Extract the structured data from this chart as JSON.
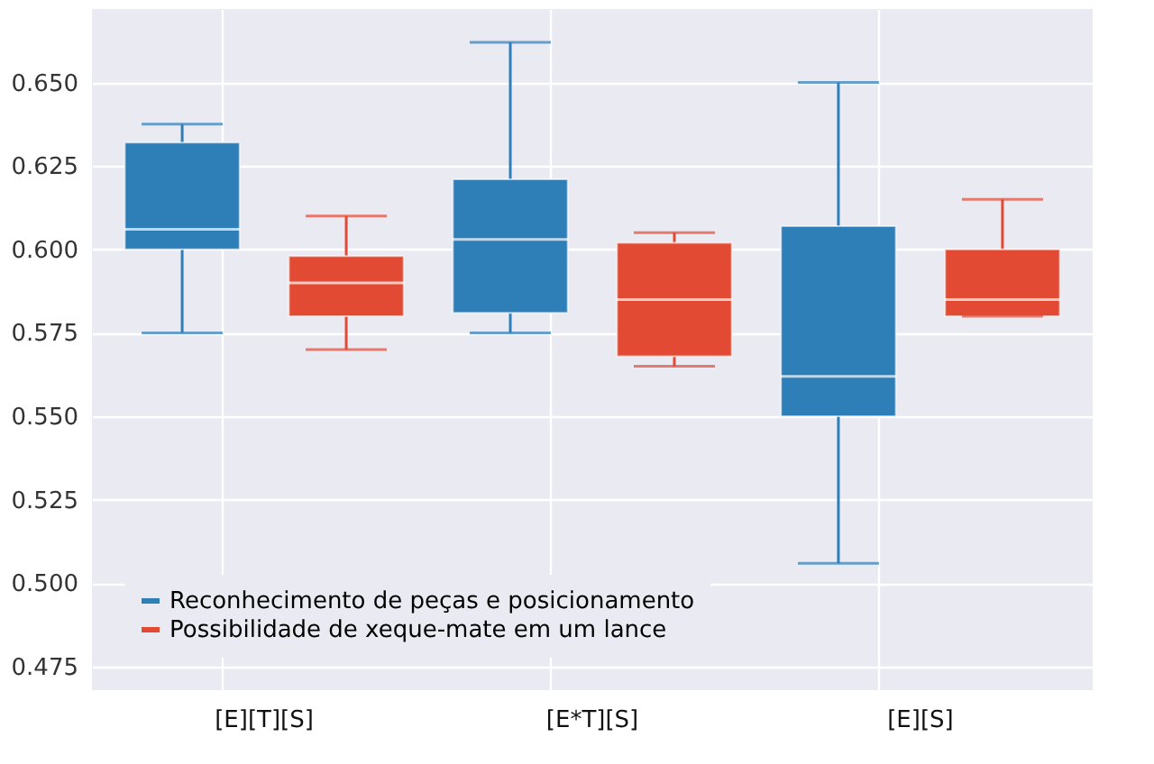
{
  "chart_data": {
    "type": "box",
    "categories": [
      "[E][T][S]",
      "[E*T][S]",
      "[E][S]"
    ],
    "series": [
      {
        "name": "Reconhecimento de peças e posicionamento",
        "color": "#2e7eb8",
        "boxes": [
          {
            "low": 0.575,
            "q1": 0.6,
            "median": 0.606,
            "q3": 0.632,
            "high": 0.6375
          },
          {
            "low": 0.575,
            "q1": 0.581,
            "median": 0.603,
            "q3": 0.621,
            "high": 0.662
          },
          {
            "low": 0.506,
            "q1": 0.55,
            "median": 0.562,
            "q3": 0.607,
            "high": 0.65
          }
        ]
      },
      {
        "name": "Possibilidade de xeque-mate em um lance",
        "color": "#e24a33",
        "boxes": [
          {
            "low": 0.57,
            "q1": 0.58,
            "median": 0.59,
            "q3": 0.598,
            "high": 0.61
          },
          {
            "low": 0.565,
            "q1": 0.568,
            "median": 0.585,
            "q3": 0.602,
            "high": 0.605
          },
          {
            "low": 0.58,
            "q1": 0.58,
            "median": 0.585,
            "q3": 0.6,
            "high": 0.615
          }
        ]
      }
    ],
    "ylim": [
      0.468,
      0.672
    ],
    "yticks": [
      {
        "value": 0.475,
        "label": "0.475"
      },
      {
        "value": 0.5,
        "label": "0.500"
      },
      {
        "value": 0.525,
        "label": "0.525"
      },
      {
        "value": 0.55,
        "label": "0.550"
      },
      {
        "value": 0.575,
        "label": "0.575"
      },
      {
        "value": 0.6,
        "label": "0.600"
      },
      {
        "value": 0.625,
        "label": "0.625"
      },
      {
        "value": 0.65,
        "label": "0.650"
      }
    ],
    "grid": true,
    "legend": "bottom left"
  }
}
